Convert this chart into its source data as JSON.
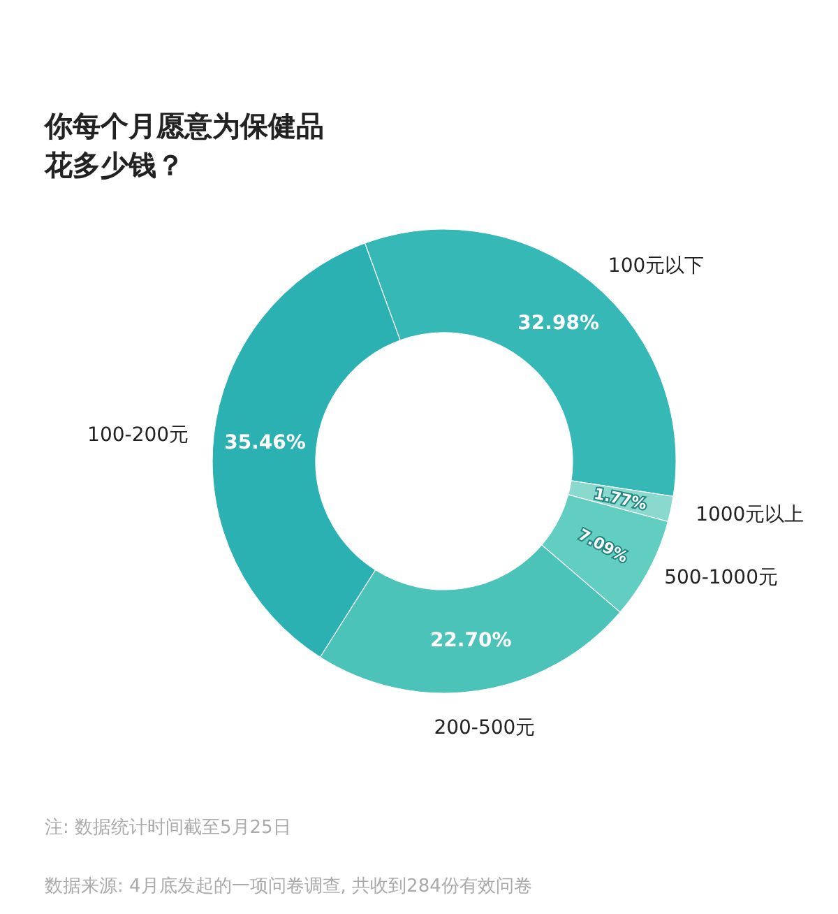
{
  "chart_data": {
    "type": "donut",
    "title": "你每个月愿意为保健品花多少钱？",
    "categories": [
      "100元以下",
      "1000元以上",
      "500-1000元",
      "200-500元",
      "100-200元"
    ],
    "values": [
      32.98,
      1.77,
      7.09,
      22.7,
      35.46
    ],
    "value_labels": [
      "32.98%",
      "1.77%",
      "7.09%",
      "22.70%",
      "35.46%"
    ],
    "colors": [
      "#35b8b6",
      "#8ad9cf",
      "#62cec1",
      "#4bc3b9",
      "#2cb1b3"
    ],
    "annotations": [
      "注: 数据统计时间截至5月25日",
      "数据来源: 4月底发起的一项问卷调查, 共收到284份有效问卷"
    ]
  }
}
